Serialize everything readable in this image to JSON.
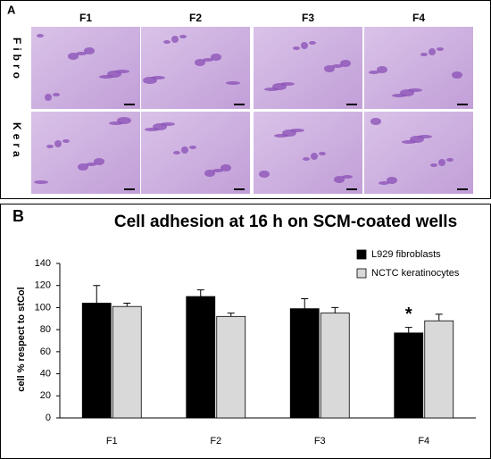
{
  "panel_a": {
    "label": "A",
    "columns": [
      "F1",
      "F2",
      "F3",
      "F4"
    ],
    "rows": [
      "Fibro",
      "Kera"
    ]
  },
  "chart_data": {
    "type": "bar",
    "panel_label": "B",
    "title": "Cell adhesion at 16 h on SCM-coated wells",
    "ylabel": "cell % respect to stCol",
    "categories": [
      "F1",
      "F2",
      "F3",
      "F4"
    ],
    "series": [
      {
        "name": "L929 fibroblasts",
        "color": "#000000",
        "values": [
          104,
          110,
          99,
          77
        ],
        "errors": [
          16,
          6,
          9,
          5
        ]
      },
      {
        "name": "NCTC keratinocytes",
        "color": "#d9d9d9",
        "values": [
          101,
          92,
          95,
          88
        ],
        "errors": [
          3,
          3,
          5,
          6
        ]
      }
    ],
    "annotations": [
      {
        "text": "*",
        "category": "F4",
        "series": "L929 fibroblasts"
      }
    ],
    "ylim": [
      0,
      140
    ],
    "yticks": [
      0,
      20,
      40,
      60,
      80,
      100,
      120,
      140
    ],
    "legend": "upper right"
  }
}
